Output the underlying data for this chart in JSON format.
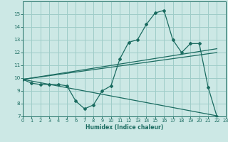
{
  "bg_color": "#cce8e5",
  "grid_color": "#9eccc8",
  "line_color": "#1a6b60",
  "xlabel": "Humidex (Indice chaleur)",
  "xlim": [
    0,
    23
  ],
  "ylim": [
    7,
    16
  ],
  "yticks": [
    7,
    8,
    9,
    10,
    11,
    12,
    13,
    14,
    15
  ],
  "xticks": [
    0,
    1,
    2,
    3,
    4,
    5,
    6,
    7,
    8,
    9,
    10,
    11,
    12,
    13,
    14,
    15,
    16,
    17,
    18,
    19,
    20,
    21,
    22,
    23
  ],
  "curve1_x": [
    0,
    1,
    2,
    3,
    4,
    5,
    6,
    7,
    8,
    9,
    10,
    11,
    12,
    13,
    14,
    15,
    16,
    17,
    18,
    19,
    20,
    21,
    22
  ],
  "curve1_y": [
    9.9,
    9.6,
    9.5,
    9.5,
    9.5,
    9.4,
    8.2,
    7.6,
    7.9,
    9.0,
    9.4,
    11.5,
    12.8,
    13.0,
    14.2,
    15.1,
    15.3,
    13.0,
    12.0,
    12.7,
    12.7,
    9.3,
    7.0
  ],
  "line1_x": [
    0,
    22
  ],
  "line1_y": [
    9.9,
    12.3
  ],
  "line2_x": [
    0,
    22
  ],
  "line2_y": [
    9.9,
    12.0
  ],
  "line3_x": [
    0,
    22
  ],
  "line3_y": [
    9.9,
    7.05
  ]
}
